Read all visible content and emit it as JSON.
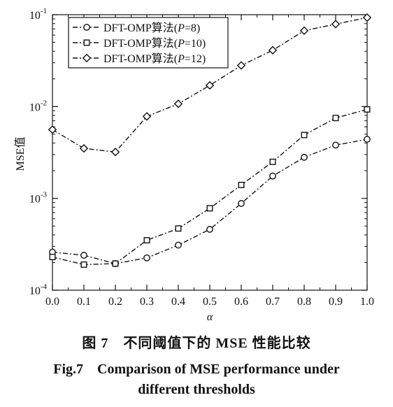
{
  "chart_data": {
    "type": "line",
    "yscale": "log",
    "x": [
      0.0,
      0.1,
      0.2,
      0.3,
      0.4,
      0.5,
      0.6,
      0.7,
      0.8,
      0.9,
      1.0
    ],
    "x_ticks": [
      "0.0",
      "0.1",
      "0.2",
      "0.3",
      "0.4",
      "0.5",
      "0.6",
      "0.7",
      "0.8",
      "0.9",
      "1.0"
    ],
    "xlim": [
      0.0,
      1.0
    ],
    "ylim": [
      0.0001,
      0.1
    ],
    "y_ticks": [
      {
        "value": 0.0001,
        "base": "10",
        "exp": "-4"
      },
      {
        "value": 0.001,
        "base": "10",
        "exp": "-3"
      },
      {
        "value": 0.01,
        "base": "10",
        "exp": "-2"
      },
      {
        "value": 0.1,
        "base": "10",
        "exp": "-1"
      }
    ],
    "xlabel": "α",
    "ylabel": "MSE值",
    "grid": false,
    "legend_position": "top-left",
    "series": [
      {
        "name": "DFT-OMP算法(P=8)",
        "name_prefix": "DFT-OMP算法(",
        "name_var": "P",
        "name_suffix": "=8)",
        "marker": "circle",
        "values": [
          0.00026,
          0.00024,
          0.000195,
          0.000225,
          0.00031,
          0.00046,
          0.00088,
          0.00175,
          0.0028,
          0.0038,
          0.0044
        ]
      },
      {
        "name": "DFT-OMP算法(P=10)",
        "name_prefix": "DFT-OMP算法(",
        "name_var": "P",
        "name_suffix": "=10)",
        "marker": "square",
        "values": [
          0.00023,
          0.00019,
          0.000195,
          0.00035,
          0.00047,
          0.00078,
          0.0014,
          0.0025,
          0.0049,
          0.0075,
          0.0093
        ]
      },
      {
        "name": "DFT-OMP算法(P=12)",
        "name_prefix": "DFT-OMP算法(",
        "name_var": "P",
        "name_suffix": "=12)",
        "marker": "diamond",
        "values": [
          0.0056,
          0.0035,
          0.0032,
          0.0078,
          0.0107,
          0.017,
          0.028,
          0.041,
          0.067,
          0.079,
          0.093
        ]
      }
    ]
  },
  "caption": {
    "cn": "图 7　不同阈值下的 MSE 性能比较",
    "en_line1": "Fig.7　Comparison of MSE performance under",
    "en_line2": "different thresholds"
  }
}
